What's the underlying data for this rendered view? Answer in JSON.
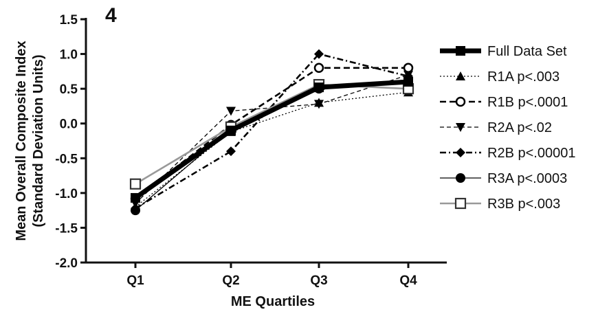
{
  "chart_data": {
    "type": "line",
    "panel_label": "4",
    "title": "",
    "xlabel": "ME Quartiles",
    "ylabel_line1": "Mean Overall Composite Index",
    "ylabel_line2": "(Standard Deviation Units)",
    "categories": [
      "Q1",
      "Q2",
      "Q3",
      "Q4"
    ],
    "ylim": [
      -2.0,
      1.5
    ],
    "yticks": [
      "1.5",
      "1.0",
      "0.5",
      "0.0",
      "-0.5",
      "-1.0",
      "-1.5",
      "-2.0"
    ],
    "ytick_values": [
      1.5,
      1.0,
      0.5,
      0.0,
      -0.5,
      -1.0,
      -1.5,
      -2.0
    ],
    "grid": false,
    "legend_position": "right",
    "series": [
      {
        "name": "Full Data Set",
        "values": [
          -1.07,
          -0.1,
          0.52,
          0.6
        ],
        "color": "#000000",
        "dash": "solid",
        "weight": "heavy",
        "marker": "square-filled"
      },
      {
        "name": "R1A p<.003",
        "values": [
          -1.2,
          -0.12,
          0.3,
          0.45
        ],
        "color": "#000000",
        "dash": "dotted",
        "weight": "thin",
        "marker": "triangle-up"
      },
      {
        "name": "R1B p<.0001",
        "values": [
          -1.08,
          -0.02,
          0.8,
          0.8
        ],
        "color": "#000000",
        "dash": "dashed-long",
        "weight": "medium",
        "marker": "circle-open"
      },
      {
        "name": "R2A p<.02",
        "values": [
          -1.15,
          0.18,
          0.28,
          0.7
        ],
        "color": "#000000",
        "dash": "dashed-short",
        "weight": "thin",
        "marker": "triangle-down"
      },
      {
        "name": "R2B p<.00001",
        "values": [
          -1.22,
          -0.4,
          1.0,
          0.68
        ],
        "color": "#000000",
        "dash": "dash-dot",
        "weight": "medium",
        "marker": "diamond"
      },
      {
        "name": "R3A p<.0003",
        "values": [
          -1.25,
          -0.08,
          0.5,
          0.58
        ],
        "color": "#000000",
        "dash": "solid",
        "weight": "thin",
        "marker": "circle-filled"
      },
      {
        "name": "R3B p<.003",
        "values": [
          -0.87,
          -0.05,
          0.56,
          0.5
        ],
        "color": "#999999",
        "dash": "solid",
        "weight": "medium",
        "marker": "square-open"
      }
    ]
  }
}
